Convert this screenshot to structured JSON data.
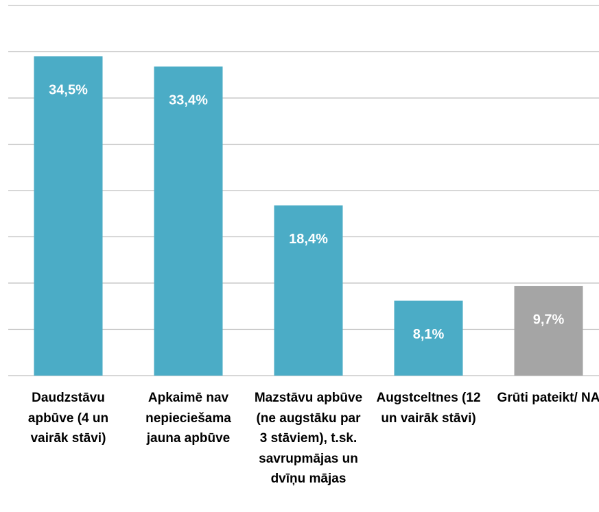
{
  "chart_data": {
    "type": "bar",
    "categories": [
      "Daudzstāvu apbūve (4 un vairāk stāvi)",
      "Apkaimē nav nepieciešama jauna apbūve",
      "Mazstāvu apbūve (ne augstāku par 3 stāviem), t.sk. savrupmājas un dvīņu mājas",
      "Augstceltnes (12 un vairāk stāvi)",
      "Grūti pateikt/ NA"
    ],
    "values": [
      34.5,
      33.4,
      18.4,
      8.1,
      9.7
    ],
    "value_labels": [
      "34,5%",
      "33,4%",
      "18,4%",
      "8,1%",
      "9,7%"
    ],
    "colors": [
      "#4bacc6",
      "#4bacc6",
      "#4bacc6",
      "#4bacc6",
      "#a5a5a5"
    ],
    "ylim": [
      0,
      40
    ],
    "yticks": [
      0,
      5,
      10,
      15,
      20,
      25,
      30,
      35,
      40
    ],
    "grid": true
  }
}
